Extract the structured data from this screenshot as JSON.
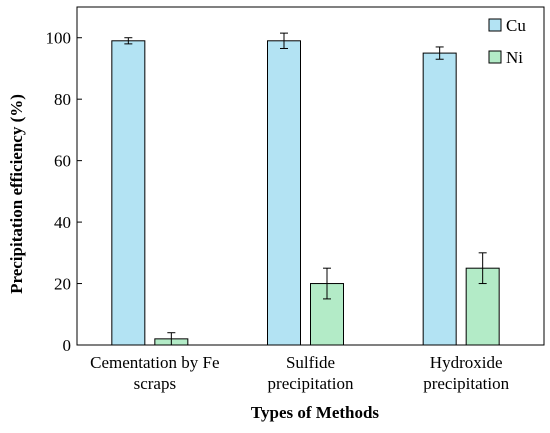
{
  "chart_data": {
    "type": "bar",
    "categories": [
      [
        "Cementation by Fe",
        "scraps"
      ],
      [
        "Sulfide",
        "precipitation"
      ],
      [
        "Hydroxide",
        "precipitation"
      ]
    ],
    "series": [
      {
        "name": "Cu",
        "values": [
          99,
          99,
          95
        ],
        "errors": [
          1,
          2.5,
          2
        ],
        "color": "#b3e3f3"
      },
      {
        "name": "Ni",
        "values": [
          2,
          20,
          25
        ],
        "errors": [
          2,
          5,
          5
        ],
        "color": "#b3ebc7"
      }
    ],
    "xlabel": "Types of Methods",
    "ylabel": "Precipitation efficiency (%)",
    "ylim": [
      0,
      110
    ],
    "yticks": [
      0,
      20,
      40,
      60,
      80,
      100
    ],
    "grid": false,
    "legend_position": "top-right"
  }
}
